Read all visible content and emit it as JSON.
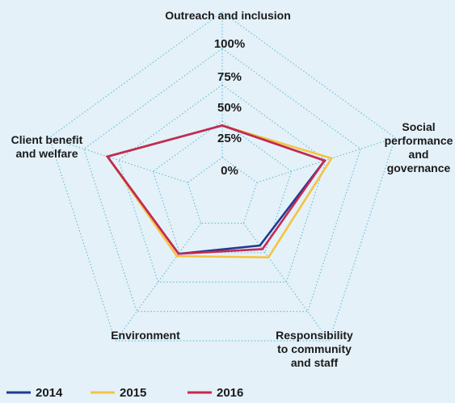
{
  "chart_data": {
    "type": "radar",
    "axes": [
      {
        "label_lines": [
          "Outreach and inclusion"
        ]
      },
      {
        "label_lines": [
          "Social",
          "performance",
          "and",
          "governance"
        ]
      },
      {
        "label_lines": [
          "Responsibility",
          "to community",
          "and staff"
        ]
      },
      {
        "label_lines": [
          "Environment"
        ]
      },
      {
        "label_lines": [
          "Client benefit",
          "and welfare"
        ]
      }
    ],
    "ticks": [
      "0%",
      "25%",
      "50%",
      "75%",
      "100%"
    ],
    "tick_values": [
      0,
      25,
      50,
      75,
      100
    ],
    "range": [
      0,
      100
    ],
    "series": [
      {
        "name": "2014",
        "color": "#1f3a93",
        "values": [
          47,
          74,
          44,
          51,
          83
        ]
      },
      {
        "name": "2015",
        "color": "#f5c342",
        "values": [
          47,
          79,
          54,
          53,
          83
        ]
      },
      {
        "name": "2016",
        "color": "#c8294f",
        "values": [
          47,
          74,
          47,
          51,
          83
        ]
      }
    ],
    "legend": "bottom-left",
    "grid": true,
    "grid_color": "#6fbfd6"
  }
}
